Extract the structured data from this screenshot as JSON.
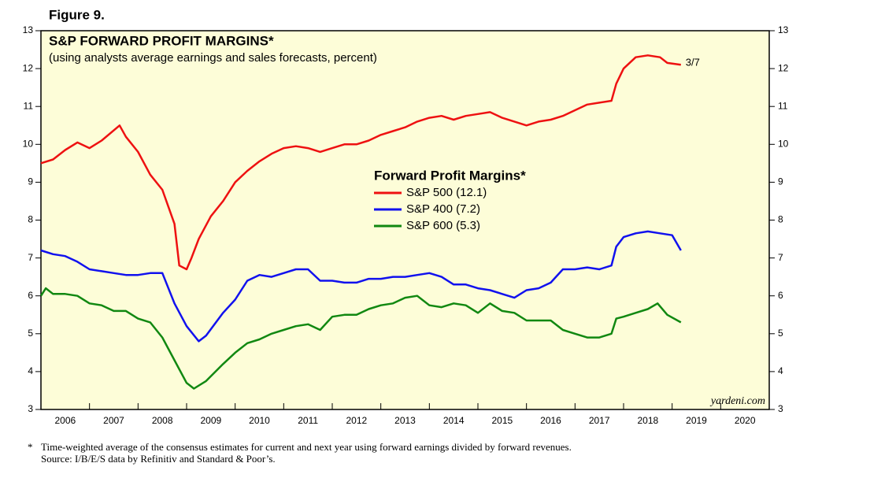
{
  "figure_label": "Figure 9.",
  "chart_data": {
    "type": "line",
    "title": "S&P FORWARD PROFIT MARGINS*",
    "subtitle": "(using analysts average earnings and sales forecasts, percent)",
    "legend_title": "Forward Profit Margins*",
    "annotation": "3/7",
    "watermark": "yardeni.com",
    "background": "#fdfdd8",
    "xlim": [
      2006,
      2021
    ],
    "xticks": [
      2006,
      2007,
      2008,
      2009,
      2010,
      2011,
      2012,
      2013,
      2014,
      2015,
      2016,
      2017,
      2018,
      2019,
      2020
    ],
    "ylim": [
      3,
      13
    ],
    "yticks": [
      3,
      4,
      5,
      6,
      7,
      8,
      9,
      10,
      11,
      12,
      13
    ],
    "series": [
      {
        "name": "S&P 500 (12.1)",
        "color": "#ee1111",
        "x": [
          2006.0,
          2006.25,
          2006.5,
          2006.75,
          2007.0,
          2007.25,
          2007.62,
          2007.75,
          2008.0,
          2008.25,
          2008.5,
          2008.75,
          2008.85,
          2009.0,
          2009.1,
          2009.25,
          2009.5,
          2009.75,
          2010.0,
          2010.25,
          2010.5,
          2010.75,
          2011.0,
          2011.25,
          2011.5,
          2011.75,
          2012.0,
          2012.25,
          2012.5,
          2012.75,
          2013.0,
          2013.25,
          2013.5,
          2013.75,
          2014.0,
          2014.25,
          2014.5,
          2014.75,
          2015.0,
          2015.25,
          2015.5,
          2015.75,
          2016.0,
          2016.25,
          2016.5,
          2016.75,
          2017.0,
          2017.25,
          2017.5,
          2017.75,
          2017.85,
          2018.0,
          2018.25,
          2018.5,
          2018.75,
          2018.9,
          2019.18
        ],
        "values": [
          9.5,
          9.6,
          9.85,
          10.05,
          9.9,
          10.1,
          10.5,
          10.2,
          9.8,
          9.2,
          8.8,
          7.9,
          6.8,
          6.7,
          7.0,
          7.5,
          8.1,
          8.5,
          9.0,
          9.3,
          9.55,
          9.75,
          9.9,
          9.95,
          9.9,
          9.8,
          9.9,
          10.0,
          10.0,
          10.1,
          10.25,
          10.35,
          10.45,
          10.6,
          10.7,
          10.75,
          10.65,
          10.75,
          10.8,
          10.85,
          10.7,
          10.6,
          10.5,
          10.6,
          10.65,
          10.75,
          10.9,
          11.05,
          11.1,
          11.15,
          11.6,
          12.0,
          12.3,
          12.35,
          12.3,
          12.15,
          12.1
        ]
      },
      {
        "name": "S&P 400 (7.2)",
        "color": "#1111ee",
        "x": [
          2006.0,
          2006.25,
          2006.5,
          2006.75,
          2007.0,
          2007.25,
          2007.5,
          2007.75,
          2008.0,
          2008.25,
          2008.5,
          2008.75,
          2009.0,
          2009.25,
          2009.4,
          2009.75,
          2010.0,
          2010.25,
          2010.5,
          2010.75,
          2011.0,
          2011.25,
          2011.5,
          2011.75,
          2012.0,
          2012.25,
          2012.5,
          2012.75,
          2013.0,
          2013.25,
          2013.5,
          2013.75,
          2014.0,
          2014.25,
          2014.5,
          2014.75,
          2015.0,
          2015.25,
          2015.5,
          2015.75,
          2016.0,
          2016.25,
          2016.5,
          2016.75,
          2017.0,
          2017.25,
          2017.5,
          2017.75,
          2017.85,
          2018.0,
          2018.25,
          2018.5,
          2018.75,
          2019.0,
          2019.18
        ],
        "values": [
          7.2,
          7.1,
          7.05,
          6.9,
          6.7,
          6.65,
          6.6,
          6.55,
          6.55,
          6.6,
          6.6,
          5.8,
          5.2,
          4.8,
          4.95,
          5.55,
          5.9,
          6.4,
          6.55,
          6.5,
          6.6,
          6.7,
          6.7,
          6.4,
          6.4,
          6.35,
          6.35,
          6.45,
          6.45,
          6.5,
          6.5,
          6.55,
          6.6,
          6.5,
          6.3,
          6.3,
          6.2,
          6.15,
          6.05,
          5.95,
          6.15,
          6.2,
          6.35,
          6.7,
          6.7,
          6.75,
          6.7,
          6.8,
          7.3,
          7.55,
          7.65,
          7.7,
          7.65,
          7.6,
          7.2
        ]
      },
      {
        "name": "S&P 600 (5.3)",
        "color": "#118811",
        "x": [
          2006.0,
          2006.1,
          2006.25,
          2006.5,
          2006.75,
          2007.0,
          2007.25,
          2007.5,
          2007.75,
          2008.0,
          2008.25,
          2008.5,
          2008.75,
          2009.0,
          2009.15,
          2009.4,
          2009.75,
          2010.0,
          2010.25,
          2010.5,
          2010.75,
          2011.0,
          2011.25,
          2011.5,
          2011.75,
          2012.0,
          2012.25,
          2012.5,
          2012.75,
          2013.0,
          2013.25,
          2013.5,
          2013.75,
          2014.0,
          2014.25,
          2014.5,
          2014.75,
          2015.0,
          2015.25,
          2015.5,
          2015.75,
          2016.0,
          2016.25,
          2016.5,
          2016.75,
          2017.0,
          2017.25,
          2017.5,
          2017.75,
          2017.85,
          2018.0,
          2018.25,
          2018.5,
          2018.7,
          2018.9,
          2019.18
        ],
        "values": [
          6.0,
          6.2,
          6.05,
          6.05,
          6.0,
          5.8,
          5.75,
          5.6,
          5.6,
          5.4,
          5.3,
          4.9,
          4.3,
          3.7,
          3.55,
          3.75,
          4.2,
          4.5,
          4.75,
          4.85,
          5.0,
          5.1,
          5.2,
          5.25,
          5.1,
          5.45,
          5.5,
          5.5,
          5.65,
          5.75,
          5.8,
          5.95,
          6.0,
          5.75,
          5.7,
          5.8,
          5.75,
          5.55,
          5.8,
          5.6,
          5.55,
          5.35,
          5.35,
          5.35,
          5.1,
          5.0,
          4.9,
          4.9,
          5.0,
          5.4,
          5.45,
          5.55,
          5.65,
          5.8,
          5.5,
          5.3
        ]
      }
    ]
  },
  "footnote": {
    "marker": "*",
    "lines": [
      "Time-weighted average of the consensus estimates for current and next year using forward earnings divided by forward revenues.",
      "Source: I/B/E/S data by Refinitiv and Standard & Poor’s."
    ]
  }
}
